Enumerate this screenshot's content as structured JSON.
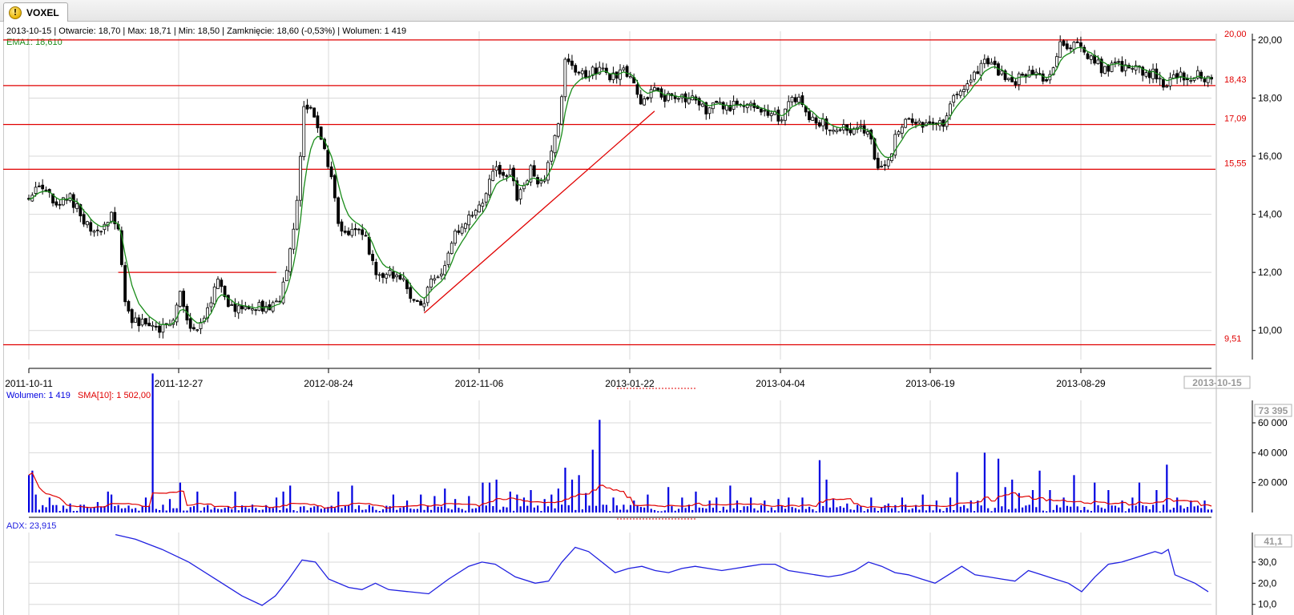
{
  "window": {
    "tab_label": "VOXEL",
    "tab_icon": "warning-icon"
  },
  "quote_line": {
    "date": "2013-10-15",
    "open_label": "Otwarcie:",
    "open": "18,70",
    "max_label": "Max:",
    "max": "18,71",
    "min_label": "Min:",
    "min": "18,50",
    "close_label": "Zamknięcie:",
    "close": "18,60",
    "change": "(-0,53%)",
    "volume_label": "Wolumen:",
    "volume": "1 419"
  },
  "ema_label": "EMA1: 18,610",
  "volume_legend": {
    "volume_text": "Wolumen: 1 419",
    "sma_text": "SMA[10]: 1 502,00"
  },
  "adx_legend": "ADX: 23,915",
  "colors": {
    "ema": "#1a8c1a",
    "hlines": "#e00000",
    "volume_bars": "#0000e0",
    "volume_sma": "#e00000",
    "adx": "#2020e0",
    "grid": "#d8d8d8",
    "candle": "#000000"
  },
  "chart_data": [
    {
      "type": "candlestick",
      "name": "price",
      "y_range": [
        9.0,
        20.3
      ],
      "y_ticks": [
        "10,00",
        "12,00",
        "14,00",
        "16,00",
        "18,00",
        "20,00"
      ],
      "x_ticks": [
        "2011-10-11",
        "2011-12-27",
        "2012-08-24",
        "2012-11-06",
        "2013-01-22",
        "2013-04-04",
        "2013-06-19",
        "2013-08-29"
      ],
      "current_date_label": "2013-10-15",
      "grid": true,
      "horizontal_levels": [
        {
          "value": 20.0,
          "label": "20,00"
        },
        {
          "value": 18.43,
          "label": "18,43"
        },
        {
          "value": 17.09,
          "label": "17,09"
        },
        {
          "value": 15.55,
          "label": "15,55"
        },
        {
          "value": 9.51,
          "label": "9,51"
        }
      ],
      "segment_levels": [
        {
          "value": 12.0,
          "x_from": 26,
          "x_to": 72
        }
      ],
      "trend_line": {
        "from": [
          115,
          10.6
        ],
        "to": [
          182,
          17.55
        ]
      },
      "ema_series_name": "EMA1",
      "anchors": [
        [
          0,
          14.6
        ],
        [
          4,
          15.0
        ],
        [
          8,
          14.2
        ],
        [
          12,
          14.6
        ],
        [
          16,
          13.8
        ],
        [
          20,
          13.3
        ],
        [
          24,
          13.9
        ],
        [
          26,
          13.6
        ],
        [
          28,
          11.0
        ],
        [
          30,
          10.3
        ],
        [
          34,
          10.2
        ],
        [
          38,
          10.1
        ],
        [
          42,
          10.2
        ],
        [
          44,
          11.5
        ],
        [
          46,
          10.3
        ],
        [
          48,
          10.0
        ],
        [
          50,
          10.3
        ],
        [
          52,
          10.7
        ],
        [
          55,
          11.7
        ],
        [
          58,
          10.8
        ],
        [
          62,
          10.7
        ],
        [
          66,
          10.8
        ],
        [
          70,
          10.8
        ],
        [
          73,
          10.9
        ],
        [
          74,
          11.6
        ],
        [
          76,
          12.7
        ],
        [
          78,
          14.5
        ],
        [
          80,
          17.8
        ],
        [
          82,
          17.6
        ],
        [
          84,
          16.9
        ],
        [
          86,
          16.3
        ],
        [
          88,
          15.3
        ],
        [
          90,
          13.8
        ],
        [
          92,
          13.2
        ],
        [
          95,
          13.6
        ],
        [
          98,
          13.2
        ],
        [
          100,
          12.3
        ],
        [
          102,
          11.8
        ],
        [
          104,
          12.0
        ],
        [
          108,
          11.9
        ],
        [
          110,
          11.4
        ],
        [
          113,
          10.9
        ],
        [
          115,
          10.8
        ],
        [
          117,
          11.9
        ],
        [
          119,
          11.7
        ],
        [
          121,
          12.2
        ],
        [
          124,
          13.3
        ],
        [
          128,
          13.8
        ],
        [
          132,
          14.3
        ],
        [
          134,
          15.3
        ],
        [
          136,
          15.7
        ],
        [
          138,
          15.2
        ],
        [
          140,
          15.7
        ],
        [
          142,
          14.5
        ],
        [
          144,
          14.9
        ],
        [
          146,
          15.5
        ],
        [
          148,
          15.1
        ],
        [
          150,
          15.2
        ],
        [
          152,
          16.2
        ],
        [
          154,
          17.2
        ],
        [
          156,
          19.2
        ],
        [
          158,
          19.0
        ],
        [
          162,
          18.8
        ],
        [
          166,
          19.0
        ],
        [
          170,
          18.7
        ],
        [
          173,
          19.0
        ],
        [
          176,
          18.4
        ],
        [
          178,
          17.7
        ],
        [
          180,
          18.1
        ],
        [
          182,
          18.3
        ],
        [
          184,
          17.9
        ],
        [
          186,
          18.2
        ],
        [
          190,
          18.0
        ],
        [
          194,
          18.1
        ],
        [
          197,
          17.6
        ],
        [
          200,
          17.8
        ],
        [
          204,
          17.7
        ],
        [
          208,
          17.8
        ],
        [
          212,
          17.7
        ],
        [
          216,
          17.5
        ],
        [
          219,
          17.3
        ],
        [
          221,
          17.8
        ],
        [
          224,
          18.1
        ],
        [
          226,
          17.4
        ],
        [
          230,
          17.2
        ],
        [
          234,
          17.0
        ],
        [
          238,
          16.9
        ],
        [
          242,
          17.0
        ],
        [
          245,
          16.5
        ],
        [
          247,
          15.6
        ],
        [
          250,
          15.7
        ],
        [
          252,
          16.7
        ],
        [
          254,
          17.1
        ],
        [
          258,
          17.1
        ],
        [
          262,
          17.1
        ],
        [
          266,
          17.2
        ],
        [
          268,
          17.8
        ],
        [
          270,
          18.2
        ],
        [
          272,
          18.4
        ],
        [
          275,
          18.8
        ],
        [
          278,
          19.2
        ],
        [
          281,
          19.0
        ],
        [
          284,
          18.8
        ],
        [
          287,
          18.6
        ],
        [
          290,
          18.9
        ],
        [
          294,
          18.8
        ],
        [
          296,
          18.7
        ],
        [
          298,
          19.1
        ],
        [
          300,
          19.9
        ],
        [
          302,
          19.7
        ],
        [
          305,
          19.8
        ],
        [
          308,
          19.5
        ],
        [
          310,
          19.3
        ],
        [
          312,
          19.0
        ],
        [
          316,
          19.1
        ],
        [
          320,
          19.0
        ],
        [
          324,
          18.9
        ],
        [
          328,
          18.8
        ],
        [
          331,
          18.4
        ],
        [
          333,
          18.8
        ],
        [
          336,
          18.7
        ],
        [
          338,
          18.6
        ],
        [
          340,
          18.9
        ],
        [
          342,
          18.6
        ],
        [
          344,
          18.6
        ]
      ],
      "n_candles": 345
    },
    {
      "type": "bar",
      "name": "volume",
      "y_ticks": [
        "20 000",
        "40 000",
        "60 000"
      ],
      "y_range": [
        0,
        75000
      ],
      "current_value_label": "73 395",
      "series": [
        {
          "name": "Wolumen",
          "style": "bars"
        },
        {
          "name": "SMA[10]",
          "style": "line"
        }
      ],
      "spikes": [
        [
          0,
          25000
        ],
        [
          1,
          28000
        ],
        [
          2,
          12000
        ],
        [
          6,
          10000
        ],
        [
          8,
          5000
        ],
        [
          12,
          6000
        ],
        [
          20,
          7000
        ],
        [
          23,
          14000
        ],
        [
          24,
          12000
        ],
        [
          26,
          5000
        ],
        [
          34,
          10000
        ],
        [
          36,
          95000
        ],
        [
          41,
          9000
        ],
        [
          44,
          20000
        ],
        [
          49,
          14000
        ],
        [
          60,
          14000
        ],
        [
          72,
          10000
        ],
        [
          74,
          14000
        ],
        [
          76,
          18000
        ],
        [
          90,
          14000
        ],
        [
          94,
          18000
        ],
        [
          106,
          12000
        ],
        [
          110,
          8000
        ],
        [
          114,
          12000
        ],
        [
          118,
          11000
        ],
        [
          121,
          16000
        ],
        [
          124,
          9000
        ],
        [
          128,
          11000
        ],
        [
          132,
          20000
        ],
        [
          134,
          20000
        ],
        [
          136,
          22000
        ],
        [
          140,
          14000
        ],
        [
          142,
          12000
        ],
        [
          144,
          10000
        ],
        [
          146,
          15000
        ],
        [
          150,
          9000
        ],
        [
          152,
          12000
        ],
        [
          154,
          16000
        ],
        [
          156,
          30000
        ],
        [
          158,
          22000
        ],
        [
          160,
          25000
        ],
        [
          162,
          13000
        ],
        [
          164,
          42000
        ],
        [
          166,
          62000
        ],
        [
          170,
          10000
        ],
        [
          176,
          8000
        ],
        [
          180,
          12000
        ],
        [
          186,
          17000
        ],
        [
          190,
          10000
        ],
        [
          194,
          14000
        ],
        [
          198,
          8000
        ],
        [
          200,
          10000
        ],
        [
          204,
          18000
        ],
        [
          206,
          8000
        ],
        [
          210,
          10000
        ],
        [
          214,
          8000
        ],
        [
          218,
          9000
        ],
        [
          221,
          10000
        ],
        [
          225,
          10000
        ],
        [
          230,
          35000
        ],
        [
          232,
          22000
        ],
        [
          234,
          9000
        ],
        [
          238,
          6000
        ],
        [
          245,
          10000
        ],
        [
          250,
          6000
        ],
        [
          254,
          10000
        ],
        [
          260,
          12000
        ],
        [
          264,
          8000
        ],
        [
          268,
          10000
        ],
        [
          270,
          27000
        ],
        [
          274,
          8000
        ],
        [
          276,
          8000
        ],
        [
          278,
          40000
        ],
        [
          282,
          36000
        ],
        [
          284,
          17000
        ],
        [
          286,
          22000
        ],
        [
          288,
          13000
        ],
        [
          292,
          15000
        ],
        [
          294,
          28000
        ],
        [
          297,
          15000
        ],
        [
          301,
          10000
        ],
        [
          304,
          25000
        ],
        [
          310,
          20000
        ],
        [
          314,
          15000
        ],
        [
          318,
          8000
        ],
        [
          321,
          10000
        ],
        [
          323,
          20000
        ],
        [
          328,
          15000
        ],
        [
          331,
          32000
        ],
        [
          334,
          10000
        ],
        [
          338,
          8000
        ],
        [
          342,
          8000
        ]
      ]
    },
    {
      "type": "line",
      "name": "ADX",
      "y_ticks": [
        "10,0",
        "20,0",
        "30,0"
      ],
      "y_range": [
        8,
        44
      ],
      "current_value_label": "41,1",
      "series": [
        {
          "name": "ADX",
          "start_index": 26,
          "points": [
            [
              26,
              43.0
            ],
            [
              32,
              40.8
            ],
            [
              40,
              36.0
            ],
            [
              48,
              30.0
            ],
            [
              56,
              22.0
            ],
            [
              64,
              14.0
            ],
            [
              70,
              9.5
            ],
            [
              74,
              14.0
            ],
            [
              78,
              22.0
            ],
            [
              82,
              31.0
            ],
            [
              86,
              30.0
            ],
            [
              90,
              22.0
            ],
            [
              96,
              18.0
            ],
            [
              100,
              17.0
            ],
            [
              104,
              20.0
            ],
            [
              108,
              17.0
            ],
            [
              114,
              16.0
            ],
            [
              120,
              15.0
            ],
            [
              126,
              22.0
            ],
            [
              132,
              28.0
            ],
            [
              136,
              30.0
            ],
            [
              140,
              29.0
            ],
            [
              146,
              23.0
            ],
            [
              152,
              20.0
            ],
            [
              156,
              21.0
            ],
            [
              160,
              30.0
            ],
            [
              164,
              37.0
            ],
            [
              168,
              35.0
            ],
            [
              172,
              30.0
            ],
            [
              176,
              25.0
            ],
            [
              180,
              27.0
            ],
            [
              184,
              28.0
            ],
            [
              188,
              26.0
            ],
            [
              192,
              25.0
            ],
            [
              196,
              27.0
            ],
            [
              200,
              28.0
            ],
            [
              204,
              27.0
            ],
            [
              208,
              26.0
            ],
            [
              212,
              27.0
            ],
            [
              216,
              28.0
            ],
            [
              220,
              29.0
            ],
            [
              224,
              29.0
            ],
            [
              228,
              26.0
            ],
            [
              232,
              25.0
            ],
            [
              236,
              24.0
            ],
            [
              240,
              23.0
            ],
            [
              244,
              24.0
            ],
            [
              248,
              26.0
            ],
            [
              252,
              30.0
            ],
            [
              256,
              28.0
            ],
            [
              260,
              25.0
            ],
            [
              264,
              24.0
            ],
            [
              268,
              22.0
            ],
            [
              272,
              20.0
            ],
            [
              276,
              24.0
            ],
            [
              280,
              28.0
            ],
            [
              284,
              24.0
            ],
            [
              288,
              23.0
            ],
            [
              292,
              22.0
            ],
            [
              296,
              21.0
            ],
            [
              300,
              26.0
            ],
            [
              304,
              24.0
            ],
            [
              308,
              22.0
            ],
            [
              312,
              20.0
            ],
            [
              316,
              16.0
            ],
            [
              320,
              23.0
            ],
            [
              324,
              29.0
            ],
            [
              328,
              30.0
            ],
            [
              332,
              32.0
            ],
            [
              336,
              34.0
            ],
            [
              338,
              35.0
            ],
            [
              340,
              34.0
            ],
            [
              342,
              36.0
            ],
            [
              344,
              24.0
            ],
            [
              350,
              20.0
            ],
            [
              354,
              16.0
            ]
          ]
        }
      ]
    }
  ]
}
